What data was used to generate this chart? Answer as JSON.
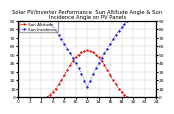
{
  "title": "Solar PV/Inverter Performance  Sun Altitude Angle & Sun Incidence Angle on PV Panels",
  "bg_color": "#ffffff",
  "grid_color": "#bbbbbb",
  "x_start": 0,
  "x_end": 24,
  "x_ticks": [
    0,
    2,
    4,
    6,
    8,
    10,
    12,
    14,
    16,
    18,
    20,
    22,
    24
  ],
  "x_tick_labels": [
    "0",
    "2",
    "4",
    "6",
    "8",
    "10",
    "12",
    "14",
    "16",
    "18",
    "20",
    "22",
    "24"
  ],
  "y_ticks": [
    0,
    10,
    20,
    30,
    40,
    50,
    60,
    70,
    80,
    90
  ],
  "y_lim": [
    0,
    90
  ],
  "altitude_color": "#dd0000",
  "incidence_color": "#0000cc",
  "altitude_x": [
    5.0,
    5.5,
    6.0,
    6.5,
    7.0,
    7.5,
    8.0,
    8.5,
    9.0,
    9.5,
    10.0,
    10.5,
    11.0,
    11.5,
    12.0,
    12.5,
    13.0,
    13.5,
    14.0,
    14.5,
    15.0,
    15.5,
    16.0,
    16.5,
    17.0,
    17.5,
    18.0,
    18.5,
    19.0
  ],
  "altitude_y": [
    0,
    3,
    6,
    10,
    15,
    20,
    26,
    32,
    38,
    43,
    47,
    50,
    53,
    54,
    55,
    54,
    53,
    50,
    47,
    43,
    38,
    32,
    26,
    20,
    15,
    10,
    6,
    3,
    0
  ],
  "incidence_x": [
    5.0,
    5.5,
    6.0,
    6.5,
    7.0,
    7.5,
    8.0,
    8.5,
    9.0,
    9.5,
    10.0,
    10.5,
    11.0,
    11.5,
    12.0,
    12.5,
    13.0,
    13.5,
    14.0,
    14.5,
    15.0,
    15.5,
    16.0,
    16.5,
    17.0,
    17.5,
    18.0,
    18.5,
    19.0
  ],
  "incidence_y": [
    90,
    86,
    82,
    78,
    73,
    68,
    63,
    57,
    52,
    46,
    40,
    34,
    27,
    19,
    12,
    19,
    27,
    34,
    40,
    46,
    52,
    57,
    63,
    68,
    73,
    78,
    82,
    86,
    90
  ],
  "legend_altitude": "Sun Altitude",
  "legend_incidence": "Sun Incidence",
  "title_fontsize": 3.8,
  "legend_fontsize": 3.0,
  "tick_fontsize": 3.2,
  "marker_size": 1.2,
  "line_width": 0.5
}
